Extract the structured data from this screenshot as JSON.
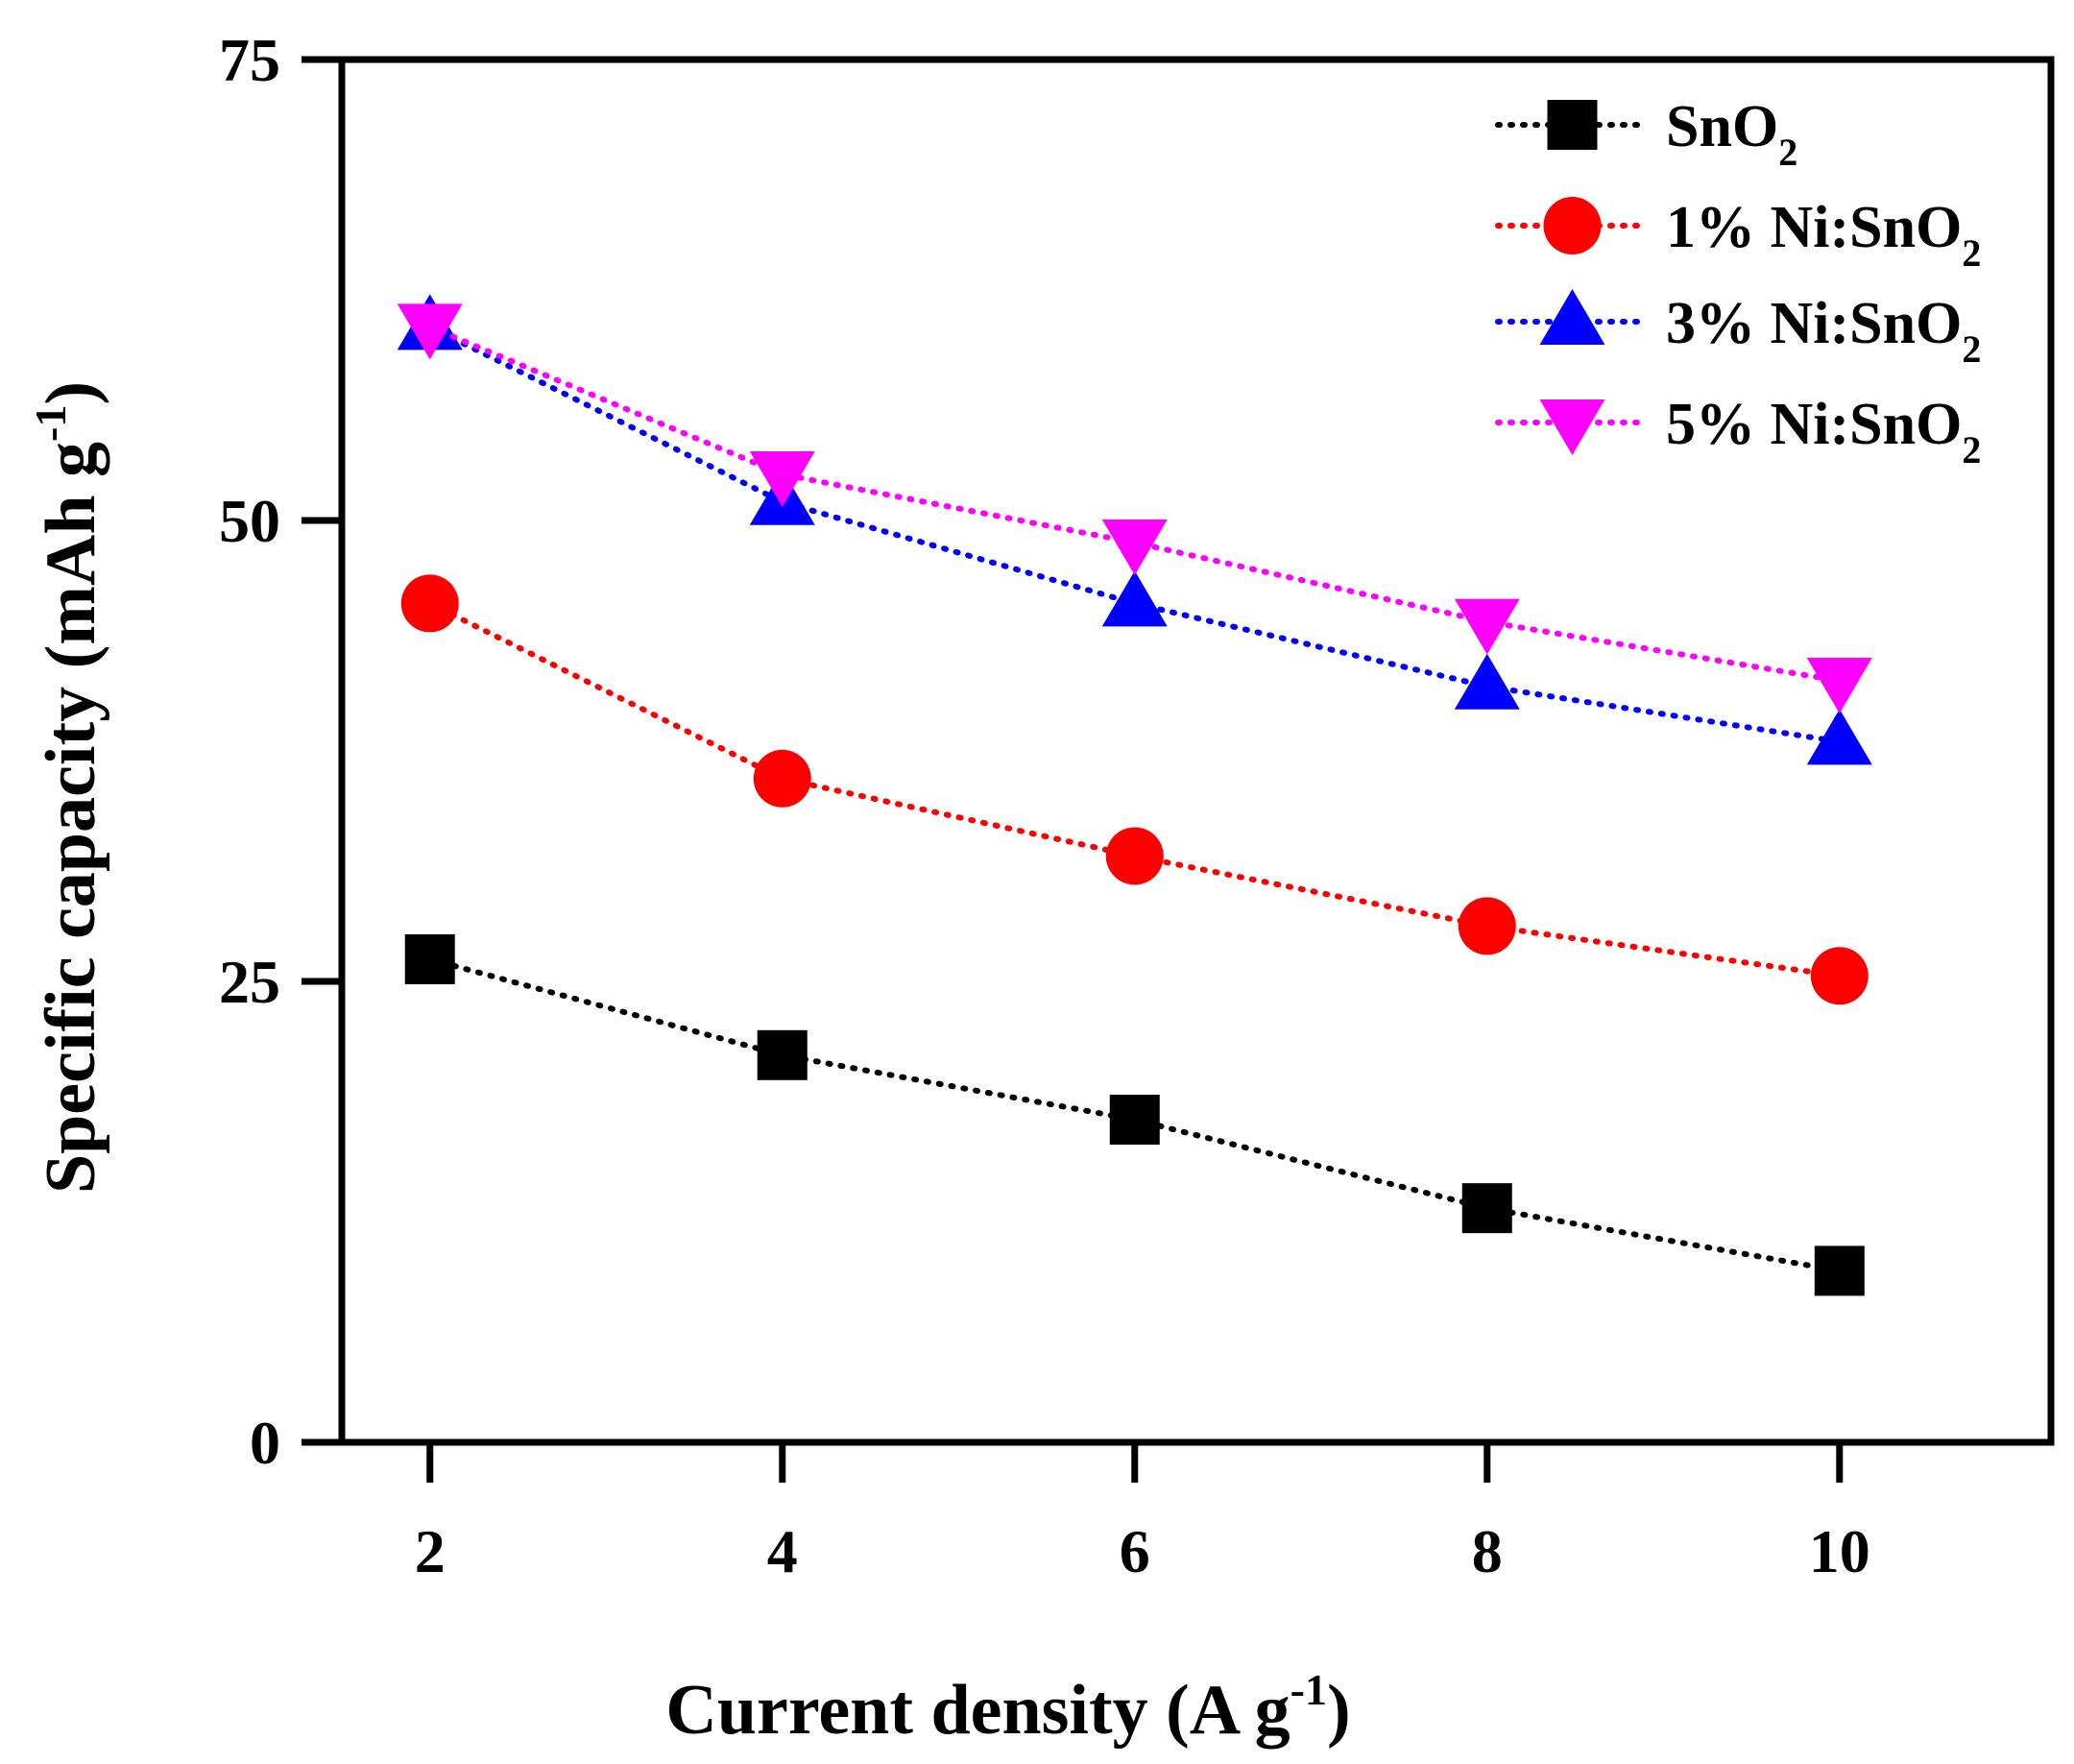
{
  "chart_data": {
    "type": "line",
    "title": "",
    "xlabel": "Current density (A g",
    "xlabel_sup": "-1",
    "xlabel_end": ")",
    "ylabel": "Specific capacity (mAh g",
    "ylabel_sup": "-1",
    "ylabel_end": ")",
    "xlim": [
      1.5,
      11.2
    ],
    "ylim": [
      0,
      75
    ],
    "xticks": [
      2,
      4,
      6,
      8,
      10
    ],
    "xtick_labels": [
      "2",
      "4",
      "6",
      "8",
      "10"
    ],
    "yticks": [
      0,
      25,
      50,
      75
    ],
    "ytick_labels": [
      "0",
      "25",
      "50",
      "75"
    ],
    "x": [
      2,
      4,
      6,
      8,
      10
    ],
    "legend_position": "top-right",
    "series": [
      {
        "name": "SnO",
        "subscript": "2",
        "marker": "square",
        "color": "#000000",
        "values": [
          26.2,
          21.0,
          17.5,
          12.7,
          9.3
        ]
      },
      {
        "name": "1% Ni:SnO",
        "subscript": "2",
        "marker": "circle",
        "color": "#ff0000",
        "values": [
          45.5,
          36.0,
          31.8,
          28.0,
          25.3
        ]
      },
      {
        "name": "3% Ni:SnO",
        "subscript": "2",
        "marker": "triangle-up",
        "color": "#0000ff",
        "values": [
          60.5,
          51.0,
          45.5,
          41.0,
          38.0
        ]
      },
      {
        "name": "5% Ni:SnO",
        "subscript": "2",
        "marker": "triangle-down",
        "color": "#ff00ff",
        "values": [
          60.5,
          52.5,
          48.8,
          44.5,
          41.3
        ]
      }
    ]
  }
}
